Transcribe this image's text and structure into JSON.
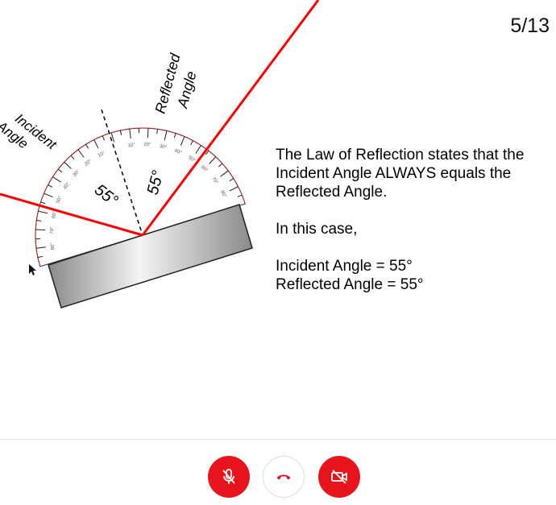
{
  "slide": {
    "page_counter": "5/13",
    "explanation": {
      "paragraph": "The Law of Reflection states that the Incident Angle ALWAYS equals the Reflected Angle.",
      "case_intro": "In this case,",
      "incident_eq": "Incident Angle = 55°",
      "reflected_eq": "Reflected Angle = 55°"
    },
    "diagram": {
      "incident_label_line1": "Incident",
      "incident_label_line2": "Angle",
      "reflected_label_line1": "Reflected",
      "reflected_label_line2": "Angle",
      "incident_angle_value": "55°",
      "reflected_angle_value": "55°",
      "ray_color": "#ff0000",
      "protractor_ticks_left": [
        "10°",
        "20°",
        "30°",
        "40°",
        "50°",
        "60°",
        "70°",
        "80°"
      ],
      "protractor_ticks_right": [
        "10°",
        "20°",
        "30°",
        "40°",
        "50°",
        "60°",
        "70°",
        "80°"
      ]
    }
  },
  "controls": {
    "mic_icon": "mic-off-icon",
    "hangup_icon": "phone-hangup-icon",
    "camera_icon": "camera-off-icon",
    "accent_color": "#e8141d"
  }
}
